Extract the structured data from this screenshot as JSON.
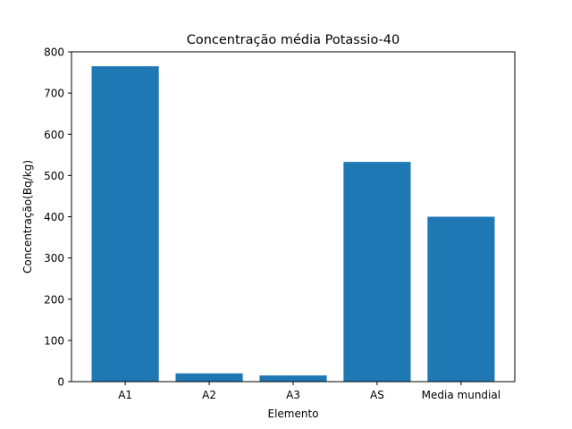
{
  "chart_data": {
    "type": "bar",
    "title": "Concentração média Potassio-40",
    "xlabel": "Elemento",
    "ylabel": "Concentração(Bq/kg)",
    "categories": [
      "A1",
      "A2",
      "A3",
      "AS",
      "Media mundial"
    ],
    "values": [
      765,
      20,
      15,
      533,
      400
    ],
    "ylim": [
      0,
      800
    ],
    "yticks": [
      "0",
      "100",
      "200",
      "300",
      "400",
      "500",
      "600",
      "700",
      "800"
    ],
    "bar_color": "#1f77b4",
    "grid": false,
    "legend": "none"
  }
}
